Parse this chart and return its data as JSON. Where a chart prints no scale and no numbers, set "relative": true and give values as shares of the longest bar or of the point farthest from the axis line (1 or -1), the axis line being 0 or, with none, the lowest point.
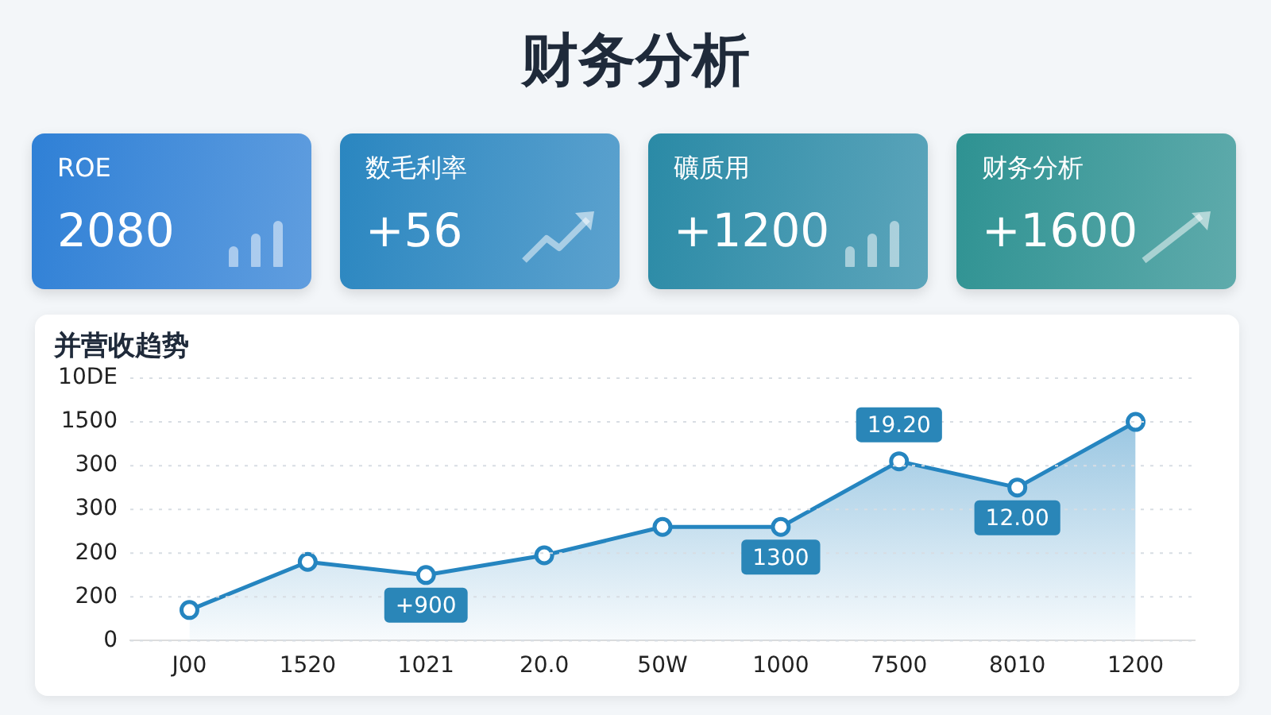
{
  "chart_data": [
    {
      "type": "other",
      "title": "财务分析",
      "categories": [
        "ROE",
        "数毛利率",
        "礦质用",
        "财务分析"
      ],
      "value_labels": [
        "2080",
        "+56",
        "+1200",
        "+1600"
      ],
      "colors": [
        "#2f80d6",
        "#2a86c0",
        "#2a8aa6",
        "#2e9292"
      ]
    },
    {
      "type": "area",
      "title": "并营收趋势",
      "categories": [
        "J00",
        "1520",
        "1021",
        "20.0",
        "50W",
        "1000",
        "7500",
        "8010",
        "1200"
      ],
      "series": [
        {
          "color": "#2585c0",
          "values": [
            0.14,
            0.36,
            0.3,
            0.39,
            0.52,
            0.52,
            0.82,
            0.7,
            1
          ]
        }
      ],
      "relative": true,
      "grid": "y",
      "legend": false,
      "marker": "circle",
      "line_style": "solid",
      "annotations": [
        "10DE",
        "1500",
        "300",
        "300",
        "200",
        "200",
        "0",
        {
          "text": "+900",
          "x": "1021",
          "y": 0.3
        },
        {
          "text": "1300",
          "x": "1000",
          "y": 0.52
        },
        {
          "text": "19.20",
          "x": "7500",
          "y": 0.82
        },
        {
          "text": "12.00",
          "x": "8010",
          "y": 0.7
        }
      ]
    }
  ]
}
